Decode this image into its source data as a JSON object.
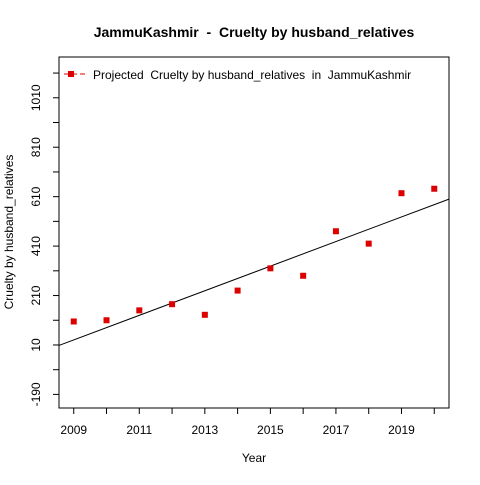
{
  "chart_data": {
    "type": "scatter",
    "title": "JammuKashmir  -  Cruelty by husband_relatives",
    "xlabel": "Year",
    "ylabel": "Cruelty by husband_relatives",
    "xlim": [
      2008.55,
      2020.45
    ],
    "ylim": [
      -245,
      1175
    ],
    "x_ticks": [
      2009,
      2011,
      2013,
      2015,
      2017,
      2019
    ],
    "x_minor_ticks": [
      2010,
      2012,
      2014,
      2016,
      2018,
      2020
    ],
    "y_ticks": [
      -190,
      10,
      210,
      410,
      610,
      810,
      1010
    ],
    "y_minor_ticks": [
      -90,
      110,
      310,
      510,
      710,
      910,
      1110
    ],
    "series": [
      {
        "name": "Projected  Cruelty by husband_relatives  in  JammuKashmir",
        "color": "#dd0000",
        "marker": "square",
        "x": [
          2009,
          2010,
          2011,
          2012,
          2013,
          2014,
          2015,
          2016,
          2017,
          2018,
          2019,
          2020
        ],
        "y": [
          105,
          110,
          150,
          175,
          132,
          230,
          320,
          290,
          470,
          420,
          624,
          642
        ]
      }
    ],
    "trend_line": {
      "x": [
        2008.55,
        2020.45
      ],
      "y": [
        8,
        600
      ],
      "color": "#000000"
    },
    "legend": {
      "placement": "top-left",
      "border": true
    }
  }
}
